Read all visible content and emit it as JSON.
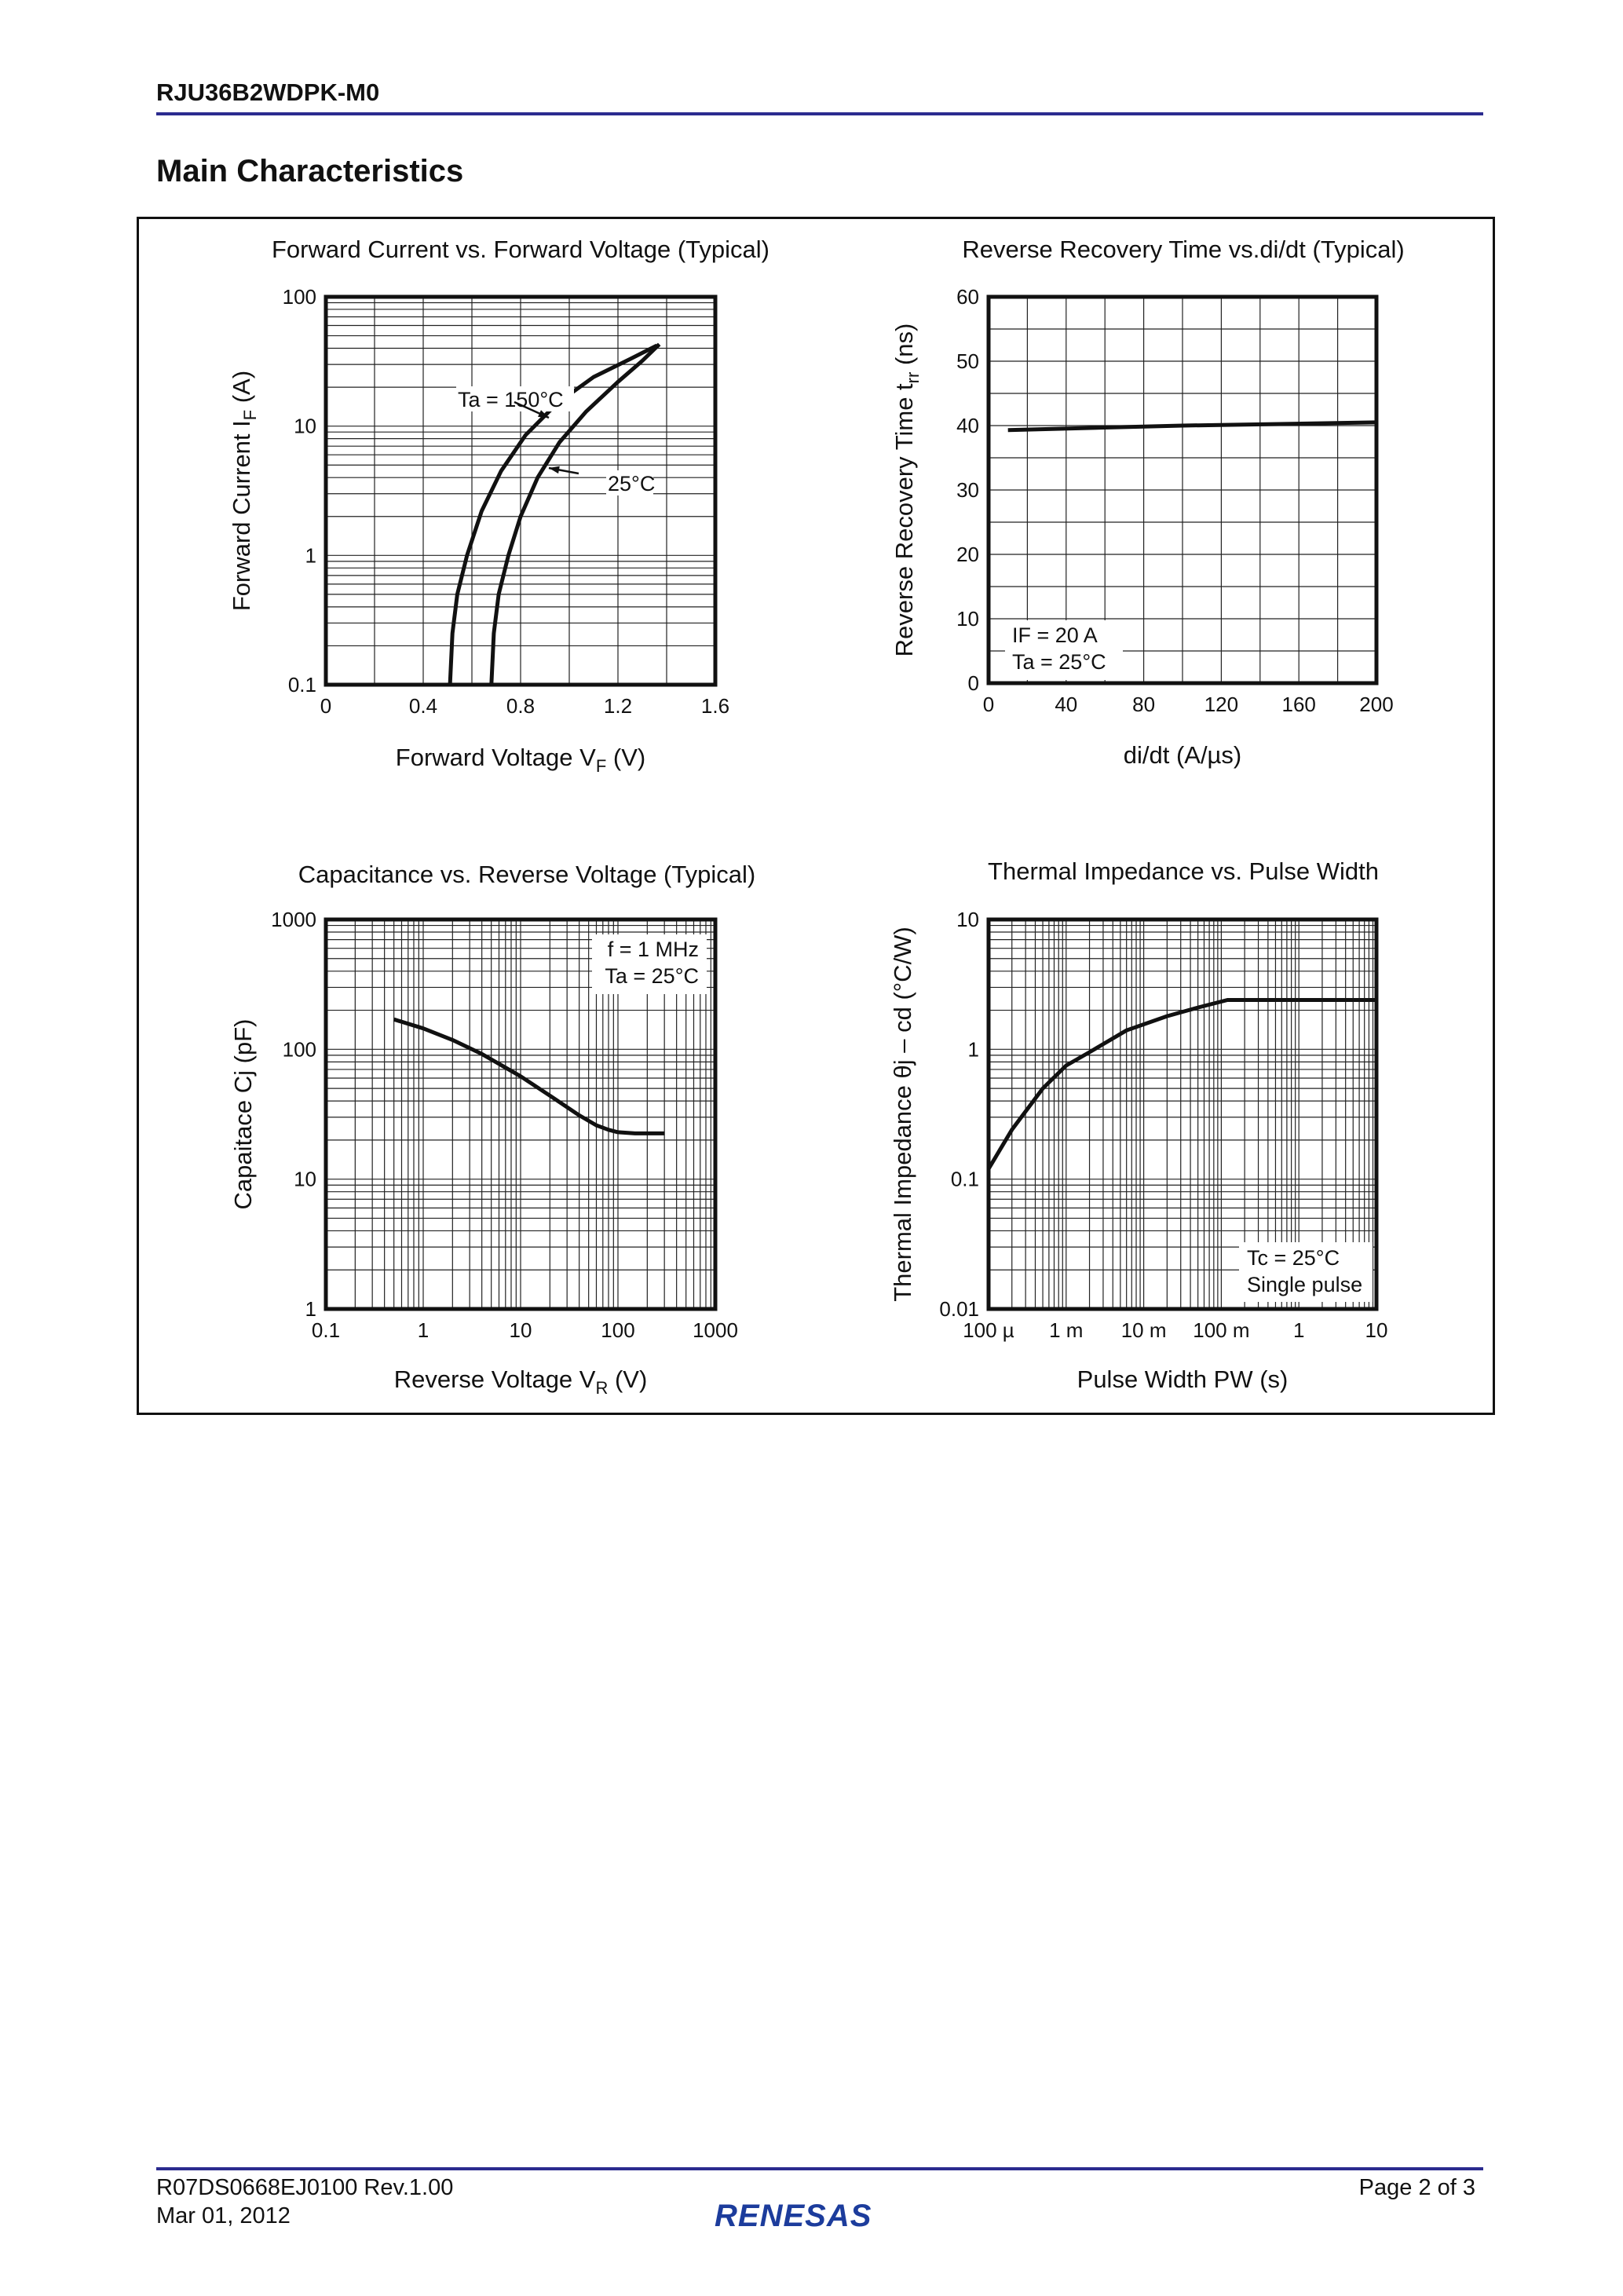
{
  "header": {
    "doc_id": "RJU36B2WDPK-M0",
    "section_title": "Main Characteristics"
  },
  "footer": {
    "doc_number": "R07DS0668EJ0100  Rev.1.00",
    "date": "Mar 01, 2012",
    "page": "Page 2 of 3",
    "logo": "RENESAS",
    "line_color": "#2b2b8f"
  },
  "chart_data": [
    {
      "type": "line",
      "title": "Forward Current vs. Forward Voltage (Typical)",
      "xlabel": {
        "text": "Forward Voltage   V",
        "sub": "F",
        "unit": "  (V)"
      },
      "ylabel": {
        "text": "Forward Current   I",
        "sub": "F",
        "unit": "  (A)"
      },
      "xscale": "linear",
      "yscale": "log",
      "xlim": [
        0,
        1.6
      ],
      "ylim": [
        0.1,
        100
      ],
      "xticks": [
        0,
        0.4,
        0.8,
        1.2,
        1.6
      ],
      "xtick_labels": [
        "0",
        "0.4",
        "0.8",
        "1.2",
        "1.6"
      ],
      "yticks": [
        0.1,
        1,
        10,
        100
      ],
      "ytick_labels": [
        "0.1",
        "1",
        "10",
        "100"
      ],
      "grid": true,
      "series": [
        {
          "name": "Ta = 150°C",
          "x": [
            0.51,
            0.52,
            0.54,
            0.58,
            0.64,
            0.72,
            0.82,
            0.95,
            1.1,
            1.25,
            1.36
          ],
          "y": [
            0.1,
            0.25,
            0.5,
            1,
            2.2,
            4.5,
            8.5,
            15,
            24,
            33,
            42
          ]
        },
        {
          "name": "25°C",
          "x": [
            0.68,
            0.69,
            0.71,
            0.75,
            0.8,
            0.87,
            0.96,
            1.07,
            1.2,
            1.3,
            1.37
          ],
          "y": [
            0.1,
            0.25,
            0.5,
            1,
            2,
            4,
            7.5,
            13,
            22,
            32,
            43
          ]
        }
      ],
      "annotations": [
        "Ta = 150°C",
        "25°C"
      ]
    },
    {
      "type": "line",
      "title": "Reverse Recovery Time vs.di/dt (Typical)",
      "xlabel": {
        "text": "di/dt   (A/µs)",
        "sub": "",
        "unit": ""
      },
      "ylabel": {
        "text": "Reverse Recovery Time   t",
        "sub": "rr",
        "unit": "  (ns)"
      },
      "xscale": "linear",
      "yscale": "linear",
      "xlim": [
        0,
        200
      ],
      "ylim": [
        0,
        60
      ],
      "xticks": [
        0,
        40,
        80,
        120,
        160,
        200
      ],
      "xtick_labels": [
        "0",
        "40",
        "80",
        "120",
        "160",
        "200"
      ],
      "yticks": [
        0,
        10,
        20,
        30,
        40,
        50,
        60
      ],
      "ytick_labels": [
        "0",
        "10",
        "20",
        "30",
        "40",
        "50",
        "60"
      ],
      "grid": true,
      "series": [
        {
          "x": [
            10,
            100,
            200
          ],
          "y": [
            39.3,
            40,
            40.5
          ]
        }
      ],
      "annotations": [
        "IF = 20 A",
        "Ta = 25°C"
      ]
    },
    {
      "type": "line",
      "title": "Capacitance vs. Reverse Voltage (Typical)",
      "xlabel": {
        "text": "Reverse Voltage   V",
        "sub": "R",
        "unit": "  (V)"
      },
      "ylabel": {
        "text": "Capaitace   Cj  (pF)",
        "sub": "",
        "unit": ""
      },
      "xscale": "log",
      "yscale": "log",
      "xlim": [
        0.1,
        1000
      ],
      "ylim": [
        1,
        1000
      ],
      "xticks": [
        0.1,
        1,
        10,
        100,
        1000
      ],
      "xtick_labels": [
        "0.1",
        "1",
        "10",
        "100",
        "1000"
      ],
      "yticks": [
        1,
        10,
        100,
        1000
      ],
      "ytick_labels": [
        "1",
        "10",
        "100",
        "1000"
      ],
      "grid": true,
      "series": [
        {
          "x": [
            0.5,
            1,
            2,
            4,
            10,
            20,
            40,
            60,
            80,
            100,
            150,
            300
          ],
          "y": [
            170,
            145,
            118,
            92,
            62,
            44,
            31,
            26,
            24,
            23,
            22.5,
            22.5
          ]
        }
      ],
      "annotations": [
        "f = 1 MHz",
        "Ta = 25°C"
      ]
    },
    {
      "type": "line",
      "title": "Thermal Impedance vs. Pulse Width",
      "xlabel": {
        "text": "Pulse Width   PW  (s)",
        "sub": "",
        "unit": ""
      },
      "ylabel": {
        "text": "Thermal Impedance   θj – cd  (°C/W)",
        "sub": "",
        "unit": ""
      },
      "xscale": "log",
      "yscale": "log",
      "xlim": [
        0.0001,
        10
      ],
      "ylim": [
        0.01,
        10
      ],
      "xticks": [
        0.0001,
        0.001,
        0.01,
        0.1,
        1,
        10
      ],
      "xtick_labels": [
        "100 µ",
        "1 m",
        "10 m",
        "100 m",
        "1",
        "10"
      ],
      "yticks": [
        0.01,
        0.1,
        1,
        10
      ],
      "ytick_labels": [
        "0.01",
        "0.1",
        "1",
        "10"
      ],
      "grid": true,
      "series": [
        {
          "x": [
            0.0001,
            0.0002,
            0.0005,
            0.001,
            0.002,
            0.006,
            0.02,
            0.05,
            0.12,
            10
          ],
          "y": [
            0.12,
            0.24,
            0.5,
            0.75,
            0.95,
            1.4,
            1.8,
            2.1,
            2.4,
            2.4
          ]
        }
      ],
      "annotations": [
        "Tc = 25°C",
        "Single pulse"
      ]
    }
  ]
}
